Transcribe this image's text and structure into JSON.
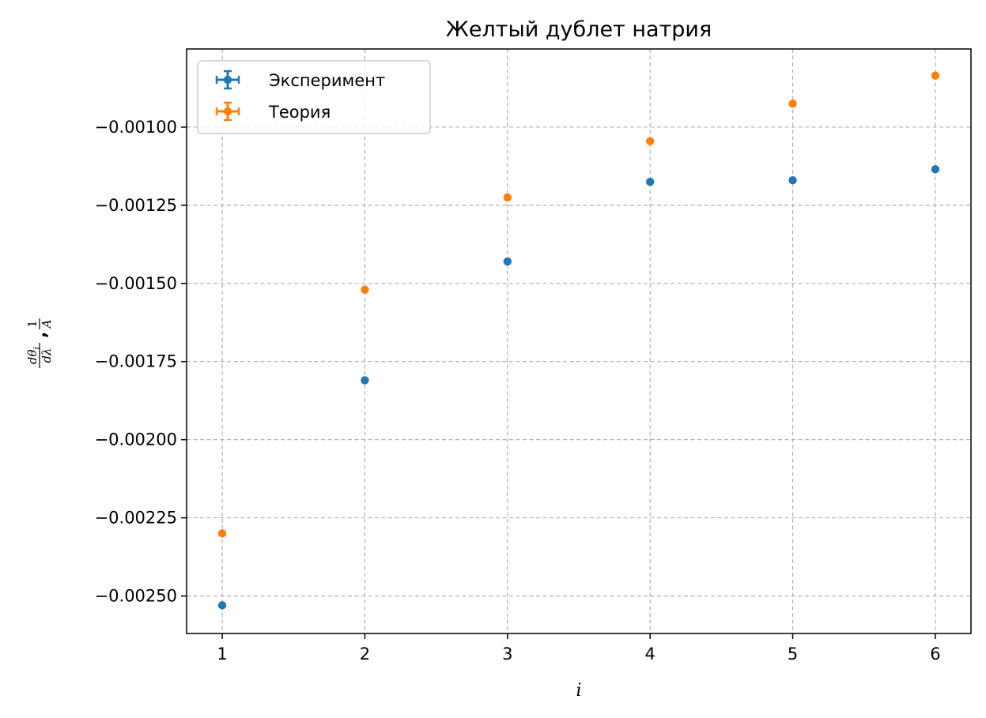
{
  "chart_data": {
    "type": "scatter",
    "title": "Желтый дублет натрия",
    "xlabel": "i",
    "ylabel_parts": {
      "num_a": "dθ",
      "sub_a": "i",
      "den_a": "dλ",
      "num_b": "1",
      "den_b": "A"
    },
    "x_ticks": [
      "1",
      "2",
      "3",
      "4",
      "5",
      "6"
    ],
    "y_ticks": [
      "−0.00100",
      "−0.00125",
      "−0.00150",
      "−0.00175",
      "−0.00200",
      "−0.00225",
      "−0.00250"
    ],
    "x_tick_values": [
      1,
      2,
      3,
      4,
      5,
      6
    ],
    "y_tick_values": [
      -0.001,
      -0.00125,
      -0.0015,
      -0.00175,
      -0.002,
      -0.00225,
      -0.0025
    ],
    "xlim": [
      0.75,
      6.25
    ],
    "ylim": [
      -0.00262,
      -0.00075
    ],
    "grid": true,
    "legend_position": "upper-left",
    "series": [
      {
        "name": "Эксперимент",
        "color": "#1f77b4",
        "x": [
          1,
          2,
          3,
          4,
          5,
          6
        ],
        "y": [
          -0.00253,
          -0.00181,
          -0.00143,
          -0.001175,
          -0.00117,
          -0.001135
        ]
      },
      {
        "name": "Теория",
        "color": "#ff7f0e",
        "x": [
          1,
          2,
          3,
          4,
          5,
          6
        ],
        "y": [
          -0.0023,
          -0.00152,
          -0.001225,
          -0.001045,
          -0.000925,
          -0.000835
        ]
      }
    ]
  }
}
